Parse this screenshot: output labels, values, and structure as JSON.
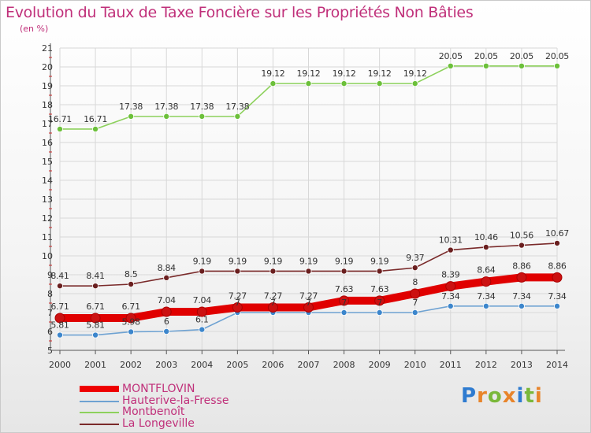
{
  "title": "Evolution du Taux de Taxe Foncière sur les Propriétés Non Bâties",
  "subtitle": "(en %)",
  "logo_text": "Proxiti",
  "colors": {
    "title": "#c0307a",
    "grid": "#d8d8d8",
    "axis": "#555555",
    "label": "#333333"
  },
  "chart_data": {
    "type": "line",
    "title": "Evolution du Taux de Taxe Foncière sur les Propriétés Non Bâties",
    "ylabel": "(en %)",
    "xlabel": "",
    "x": [
      "2000",
      "2001",
      "2002",
      "2003",
      "2004",
      "2005",
      "2006",
      "2007",
      "2008",
      "2009",
      "2010",
      "2011",
      "2012",
      "2013",
      "2014"
    ],
    "ylim": [
      5,
      21
    ],
    "yticks": [
      5,
      6,
      7,
      8,
      9,
      10,
      11,
      12,
      13,
      14,
      15,
      16,
      17,
      18,
      19,
      20,
      21
    ],
    "grid": true,
    "legend_placement": "bottom-left",
    "series": [
      {
        "name": "MONTFLOVIN",
        "color": "#ff0000",
        "marker_color": "#cc1111",
        "thick": true,
        "values": [
          6.71,
          6.71,
          6.71,
          7.04,
          7.04,
          7.27,
          7.27,
          7.27,
          7.63,
          7.63,
          8,
          8.39,
          8.64,
          8.86,
          8.86
        ],
        "labels": [
          "6.71",
          "6.71",
          "6.71",
          "7.04",
          "7.04",
          "7.27",
          "7.27",
          "7.27",
          "7.63",
          "7.63",
          "8",
          "8.39",
          "8.64",
          "8.86",
          "8.86"
        ]
      },
      {
        "name": "Hauterive-la-Fresse",
        "color": "#6ea2d2",
        "marker_color": "#3c86cc",
        "thick": false,
        "values": [
          5.81,
          5.81,
          5.98,
          6,
          6.1,
          7,
          7,
          7,
          7,
          7,
          7,
          7.34,
          7.34,
          7.34,
          7.34
        ],
        "labels": [
          "5.81",
          "5.81",
          "5.98",
          "6",
          "6.1",
          "7",
          "7",
          "7",
          "7",
          "7",
          "7",
          "7.34",
          "7.34",
          "7.34",
          "7.34"
        ]
      },
      {
        "name": "Montbenoît",
        "color": "#8dd15c",
        "marker_color": "#6cc03a",
        "thick": false,
        "values": [
          16.71,
          16.71,
          17.38,
          17.38,
          17.38,
          17.38,
          19.12,
          19.12,
          19.12,
          19.12,
          19.12,
          20.05,
          20.05,
          20.05,
          20.05
        ],
        "labels": [
          "16.71",
          "16.71",
          "17.38",
          "17.38",
          "17.38",
          "17.38",
          "19.12",
          "19.12",
          "19.12",
          "19.12",
          "19.12",
          "20.05",
          "20.05",
          "20.05",
          "20.05"
        ]
      },
      {
        "name": "La Longeville",
        "color": "#7a2a2a",
        "marker_color": "#6a1f1f",
        "thick": false,
        "values": [
          8.41,
          8.41,
          8.5,
          8.84,
          9.19,
          9.19,
          9.19,
          9.19,
          9.19,
          9.19,
          9.37,
          10.31,
          10.46,
          10.56,
          10.67
        ],
        "labels": [
          "8.41",
          "8.41",
          "8.5",
          "8.84",
          "9.19",
          "9.19",
          "9.19",
          "9.19",
          "9.19",
          "9.19",
          "9.37",
          "10.31",
          "10.46",
          "10.56",
          "10.67"
        ]
      }
    ]
  }
}
